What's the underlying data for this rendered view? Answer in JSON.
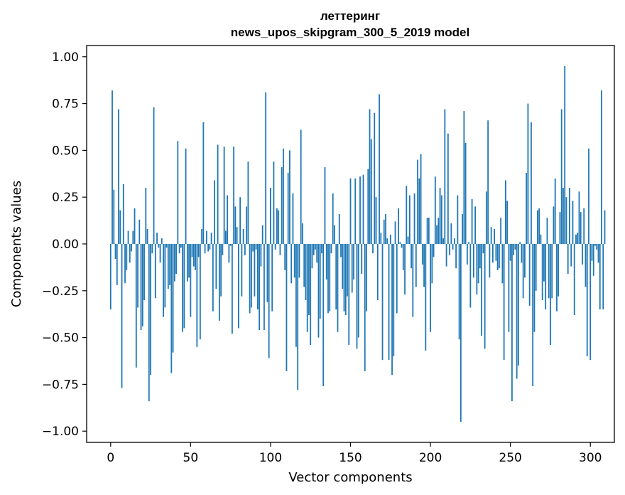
{
  "chart_data": {
    "type": "bar",
    "title": "леттеринг",
    "subtitle": "news_upos_skipgram_300_5_2019 model",
    "xlabel": "Vector components",
    "ylabel": "Components values",
    "xlim": [
      -15,
      315
    ],
    "ylim": [
      -1.06,
      1.06
    ],
    "xticks": [
      0,
      50,
      100,
      150,
      200,
      250,
      300
    ],
    "yticks": [
      -1.0,
      -0.75,
      -0.5,
      -0.25,
      0.0,
      0.25,
      0.5,
      0.75,
      1.0
    ],
    "ytick_labels": [
      "−1.00",
      "−0.75",
      "−0.50",
      "−0.25",
      "0.00",
      "0.25",
      "0.50",
      "0.75",
      "1.00"
    ],
    "xtick_labels": [
      "0",
      "50",
      "100",
      "150",
      "200",
      "250",
      "300"
    ],
    "grid": false,
    "bar_color": "#1f77b4",
    "values": [
      -0.35,
      0.82,
      0.29,
      -0.08,
      -0.22,
      0.72,
      0.18,
      -0.77,
      0.32,
      -0.21,
      -0.14,
      0.07,
      -0.1,
      -0.04,
      0.07,
      0.19,
      -0.66,
      -0.34,
      0.13,
      -0.46,
      -0.44,
      -0.3,
      0.3,
      0.08,
      -0.84,
      -0.7,
      -0.05,
      0.73,
      -0.29,
      0.06,
      -0.02,
      -0.1,
      0.03,
      -0.39,
      -0.34,
      -0.02,
      -0.24,
      -0.22,
      -0.69,
      -0.58,
      -0.2,
      -0.16,
      0.55,
      -0.05,
      -0.02,
      -0.47,
      -0.45,
      0.51,
      -0.2,
      -0.18,
      -0.39,
      -0.07,
      -0.12,
      -0.14,
      -0.55,
      -0.07,
      -0.51,
      0.08,
      0.65,
      -0.05,
      0.07,
      -0.04,
      -0.03,
      0.06,
      -0.36,
      0.34,
      -0.24,
      0.53,
      -0.41,
      -0.28,
      -0.06,
      0.52,
      0.07,
      0.26,
      -0.1,
      -0.01,
      -0.48,
      0.52,
      0.2,
      0.09,
      -0.45,
      0.25,
      -0.28,
      0.08,
      -0.06,
      0.2,
      0.44,
      -0.37,
      -0.34,
      -0.04,
      -0.28,
      -0.03,
      -0.35,
      -0.46,
      -0.12,
      0.1,
      -0.46,
      0.81,
      -0.31,
      -0.61,
      0.3,
      -0.36,
      0.44,
      -0.03,
      0.19,
      0.18,
      -0.06,
      0.41,
      0.51,
      -0.14,
      -0.68,
      0.38,
      0.5,
      -0.21,
      0.27,
      -0.18,
      -0.55,
      -0.78,
      -0.18,
      0.61,
      0.11,
      -0.23,
      -0.3,
      -0.47,
      -0.38,
      -0.54,
      -0.13,
      -0.06,
      -0.03,
      -0.1,
      -0.5,
      -0.4,
      -0.05,
      -0.76,
      0.41,
      -0.19,
      -0.37,
      -0.36,
      -0.05,
      0.27,
      0.1,
      -0.35,
      -0.47,
      0.16,
      -0.07,
      -0.24,
      -0.36,
      -0.38,
      -0.28,
      -0.54,
      0.35,
      -0.26,
      -0.19,
      0.35,
      -0.56,
      -0.5,
      0.36,
      -0.16,
      0.37,
      -0.68,
      -0.36,
      0.4,
      0.72,
      0.56,
      -0.05,
      0.7,
      0.25,
      -0.3,
      0.8,
      0.06,
      -0.62,
      0.13,
      0.16,
      0.03,
      -0.62,
      0.05,
      -0.7,
      -0.6,
      0.12,
      -0.37,
      0.19,
      0.01,
      -0.02,
      -0.14,
      -0.27,
      0.31,
      0.04,
      0.26,
      -0.13,
      -0.39,
      0.27,
      -0.23,
      0.45,
      0.35,
      0.48,
      -0.11,
      -0.23,
      -0.57,
      0.14,
      0.14,
      -0.47,
      -0.21,
      -0.07,
      0.36,
      0.1,
      0.14,
      0.3,
      0.26,
      0.03,
      0.72,
      -0.12,
      0.59,
      -0.06,
      0.11,
      -0.03,
      0.03,
      -0.13,
      0.26,
      -0.51,
      -0.95,
      0.16,
      0.71,
      0.54,
      -0.11,
      0.01,
      -0.34,
      0.24,
      -0.18,
      0.2,
      -0.27,
      -0.21,
      -0.13,
      -0.49,
      -0.05,
      -0.56,
      0.28,
      0.66,
      -0.18,
      0.09,
      -0.1,
      0.08,
      -0.09,
      -0.14,
      -0.13,
      0.14,
      -0.21,
      -0.62,
      0.34,
      0.23,
      -0.47,
      -0.09,
      -0.84,
      -0.06,
      -0.03,
      -0.72,
      -0.65,
      0.01,
      -0.1,
      -0.29,
      -0.18,
      0.38,
      0.75,
      -0.33,
      0.65,
      -0.76,
      -0.47,
      -0.25,
      0.18,
      0.19,
      0.05,
      -0.3,
      -0.2,
      -0.35,
      0.14,
      -0.29,
      -0.54,
      -0.29,
      0.2,
      0.35,
      -0.36,
      -0.28,
      0.17,
      0.72,
      0.3,
      0.95,
      0.25,
      -0.16,
      0.3,
      -0.12,
      0.23,
      -0.38,
      0.05,
      0.06,
      0.28,
      0.17,
      -0.11,
      0.19,
      -0.23,
      -0.6,
      0.51,
      -0.62,
      -0.09,
      -0.17,
      -0.01,
      -0.03,
      -0.1,
      -0.35,
      0.82,
      -0.35,
      0.18
    ]
  }
}
